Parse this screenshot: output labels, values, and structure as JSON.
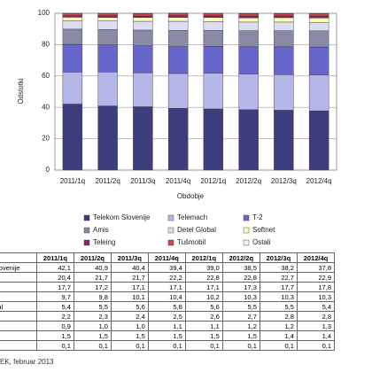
{
  "chart_data": {
    "type": "stacked_bar",
    "x_label": "Obdobje",
    "y_label": "Odstotki",
    "categories": [
      "2011/1q",
      "2011/2q",
      "2011/3q",
      "2011/4q",
      "2012/1q",
      "2012/2q",
      "2012/3q",
      "2012/4q"
    ],
    "ylim": [
      0,
      100
    ],
    "yticks": [
      0,
      20,
      40,
      60,
      80,
      100
    ],
    "legend": "bottom",
    "series": [
      {
        "name": "Telekom Slovenije",
        "color": "#3e3e7e",
        "values": [
          42.1,
          40.9,
          40.4,
          39.4,
          39.0,
          38.5,
          38.2,
          37.8
        ],
        "value_labels": [
          "42,1",
          "40,9",
          "40,4",
          "39,4",
          "39,0",
          "38,5",
          "38,2",
          "37,8"
        ]
      },
      {
        "name": "Telemach",
        "color": "#b6b6e8",
        "values": [
          20.4,
          21.7,
          21.7,
          22.2,
          22.8,
          22.8,
          22.7,
          22.9
        ],
        "value_labels": [
          "20,4",
          "21,7",
          "21,7",
          "22,2",
          "22,8",
          "22,8",
          "22,7",
          "22,9"
        ]
      },
      {
        "name": "T-2",
        "color": "#6666cc",
        "values": [
          17.7,
          17.2,
          17.1,
          17.1,
          17.1,
          17.3,
          17.7,
          17.8
        ],
        "value_labels": [
          "17,7",
          "17,2",
          "17,1",
          "17,1",
          "17,1",
          "17,3",
          "17,7",
          "17,8"
        ]
      },
      {
        "name": "Amis",
        "color": "#8a8aa6",
        "values": [
          9.7,
          9.8,
          10.1,
          10.4,
          10.2,
          10.3,
          10.3,
          10.3
        ],
        "value_labels": [
          "9,7",
          "9,8",
          "10,1",
          "10,4",
          "10,2",
          "10,3",
          "10,3",
          "10,3"
        ]
      },
      {
        "name": "Detel Global",
        "color": "#dcdcf2",
        "values": [
          5.4,
          5.5,
          5.6,
          5.8,
          5.6,
          5.5,
          5.5,
          5.4
        ],
        "value_labels": [
          "5,4",
          "5,5",
          "5,6",
          "5,8",
          "5,6",
          "5,5",
          "5,5",
          "5,4"
        ]
      },
      {
        "name": "Softnet",
        "color": "#fff8b8",
        "values": [
          2.2,
          2.3,
          2.4,
          2.5,
          2.6,
          2.7,
          2.8,
          2.8
        ],
        "value_labels": [
          "2,2",
          "2,3",
          "2,4",
          "2,5",
          "2,6",
          "2,7",
          "2,8",
          "2,8"
        ]
      },
      {
        "name": "Teleing",
        "color": "#7a2a6c",
        "values": [
          0.9,
          1.0,
          1.0,
          1.1,
          1.1,
          1.2,
          1.2,
          1.3
        ],
        "value_labels": [
          "0,9",
          "1,0",
          "1,0",
          "1,1",
          "1,1",
          "1,2",
          "1,2",
          "1,3"
        ]
      },
      {
        "name": "Tušmobil",
        "color": "#cc4848",
        "values": [
          1.5,
          1.5,
          1.5,
          1.5,
          1.5,
          1.5,
          1.4,
          1.4
        ],
        "value_labels": [
          "1,5",
          "1,5",
          "1,5",
          "1,5",
          "1,5",
          "1,5",
          "1,4",
          "1,4"
        ]
      },
      {
        "name": "Ostali",
        "color": "#f0f0f0",
        "values": [
          0.1,
          0.1,
          0.1,
          0.1,
          0.1,
          0.1,
          0.1,
          0.1
        ],
        "value_labels": [
          "0,1",
          "0,1",
          "0,1",
          "0,1",
          "0,1",
          "0,1",
          "0,1",
          "0,1"
        ]
      }
    ],
    "source": "EK, februar 2013"
  }
}
